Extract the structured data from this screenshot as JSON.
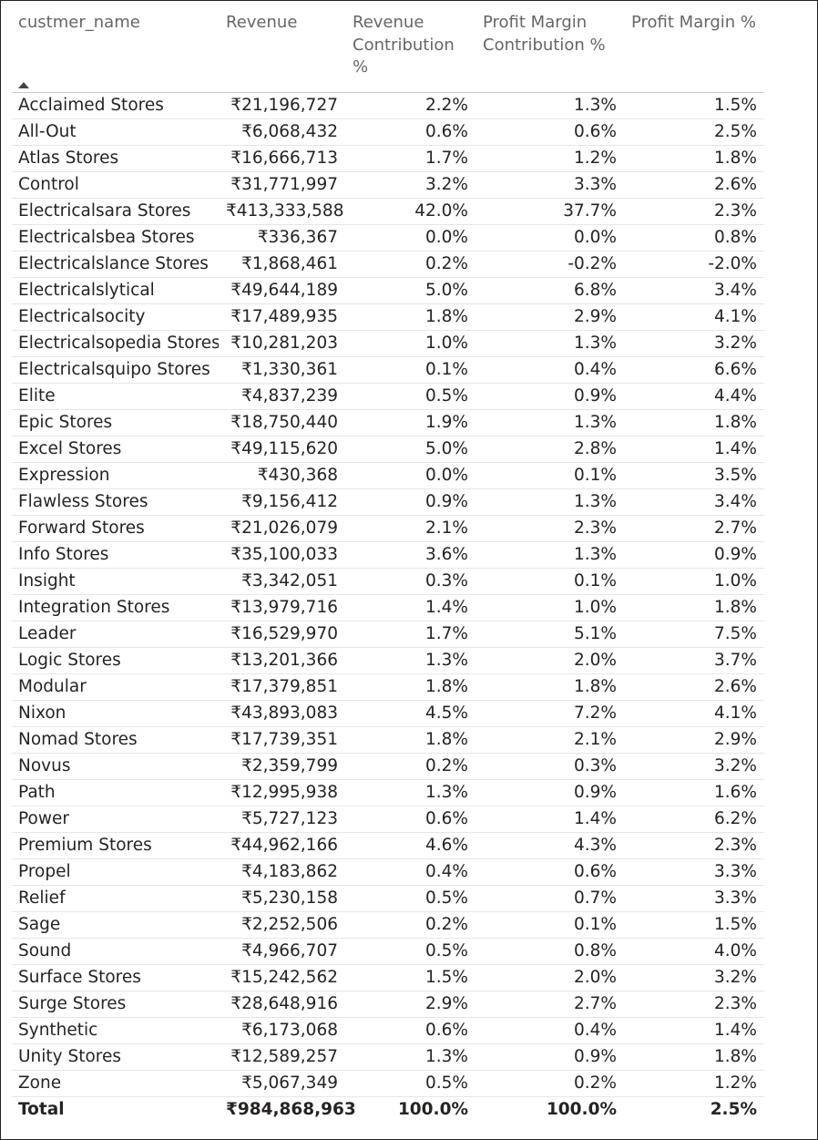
{
  "table": {
    "columns": [
      "custmer_name",
      "Revenue",
      "Revenue Contribution %",
      "Profit Margin Contribution %",
      "Profit Margin %"
    ],
    "sort": {
      "column": "custmer_name",
      "direction": "ascending",
      "icon": "sort-ascending-icon"
    },
    "rows": [
      [
        "Acclaimed Stores",
        "₹21,196,727",
        "2.2%",
        "1.3%",
        "1.5%"
      ],
      [
        "All-Out",
        "₹6,068,432",
        "0.6%",
        "0.6%",
        "2.5%"
      ],
      [
        "Atlas Stores",
        "₹16,666,713",
        "1.7%",
        "1.2%",
        "1.8%"
      ],
      [
        "Control",
        "₹31,771,997",
        "3.2%",
        "3.3%",
        "2.6%"
      ],
      [
        "Electricalsara Stores",
        "₹413,333,588",
        "42.0%",
        "37.7%",
        "2.3%"
      ],
      [
        "Electricalsbea Stores",
        "₹336,367",
        "0.0%",
        "0.0%",
        "0.8%"
      ],
      [
        "Electricalslance Stores",
        "₹1,868,461",
        "0.2%",
        "-0.2%",
        "-2.0%"
      ],
      [
        "Electricalslytical",
        "₹49,644,189",
        "5.0%",
        "6.8%",
        "3.4%"
      ],
      [
        "Electricalsocity",
        "₹17,489,935",
        "1.8%",
        "2.9%",
        "4.1%"
      ],
      [
        "Electricalsopedia Stores",
        "₹10,281,203",
        "1.0%",
        "1.3%",
        "3.2%"
      ],
      [
        "Electricalsquipo Stores",
        "₹1,330,361",
        "0.1%",
        "0.4%",
        "6.6%"
      ],
      [
        "Elite",
        "₹4,837,239",
        "0.5%",
        "0.9%",
        "4.4%"
      ],
      [
        "Epic Stores",
        "₹18,750,440",
        "1.9%",
        "1.3%",
        "1.8%"
      ],
      [
        "Excel Stores",
        "₹49,115,620",
        "5.0%",
        "2.8%",
        "1.4%"
      ],
      [
        "Expression",
        "₹430,368",
        "0.0%",
        "0.1%",
        "3.5%"
      ],
      [
        "Flawless Stores",
        "₹9,156,412",
        "0.9%",
        "1.3%",
        "3.4%"
      ],
      [
        "Forward Stores",
        "₹21,026,079",
        "2.1%",
        "2.3%",
        "2.7%"
      ],
      [
        "Info Stores",
        "₹35,100,033",
        "3.6%",
        "1.3%",
        "0.9%"
      ],
      [
        "Insight",
        "₹3,342,051",
        "0.3%",
        "0.1%",
        "1.0%"
      ],
      [
        "Integration Stores",
        "₹13,979,716",
        "1.4%",
        "1.0%",
        "1.8%"
      ],
      [
        "Leader",
        "₹16,529,970",
        "1.7%",
        "5.1%",
        "7.5%"
      ],
      [
        "Logic Stores",
        "₹13,201,366",
        "1.3%",
        "2.0%",
        "3.7%"
      ],
      [
        "Modular",
        "₹17,379,851",
        "1.8%",
        "1.8%",
        "2.6%"
      ],
      [
        "Nixon",
        "₹43,893,083",
        "4.5%",
        "7.2%",
        "4.1%"
      ],
      [
        "Nomad Stores",
        "₹17,739,351",
        "1.8%",
        "2.1%",
        "2.9%"
      ],
      [
        "Novus",
        "₹2,359,799",
        "0.2%",
        "0.3%",
        "3.2%"
      ],
      [
        "Path",
        "₹12,995,938",
        "1.3%",
        "0.9%",
        "1.6%"
      ],
      [
        "Power",
        "₹5,727,123",
        "0.6%",
        "1.4%",
        "6.2%"
      ],
      [
        "Premium Stores",
        "₹44,962,166",
        "4.6%",
        "4.3%",
        "2.3%"
      ],
      [
        "Propel",
        "₹4,183,862",
        "0.4%",
        "0.6%",
        "3.3%"
      ],
      [
        "Relief",
        "₹5,230,158",
        "0.5%",
        "0.7%",
        "3.3%"
      ],
      [
        "Sage",
        "₹2,252,506",
        "0.2%",
        "0.1%",
        "1.5%"
      ],
      [
        "Sound",
        "₹4,966,707",
        "0.5%",
        "0.8%",
        "4.0%"
      ],
      [
        "Surface Stores",
        "₹15,242,562",
        "1.5%",
        "2.0%",
        "3.2%"
      ],
      [
        "Surge Stores",
        "₹28,648,916",
        "2.9%",
        "2.7%",
        "2.3%"
      ],
      [
        "Synthetic",
        "₹6,173,068",
        "0.6%",
        "0.4%",
        "1.4%"
      ],
      [
        "Unity Stores",
        "₹12,589,257",
        "1.3%",
        "0.9%",
        "1.8%"
      ],
      [
        "Zone",
        "₹5,067,349",
        "0.5%",
        "0.2%",
        "1.2%"
      ]
    ],
    "total": [
      "Total",
      "₹984,868,963",
      "100.0%",
      "100.0%",
      "2.5%"
    ]
  }
}
